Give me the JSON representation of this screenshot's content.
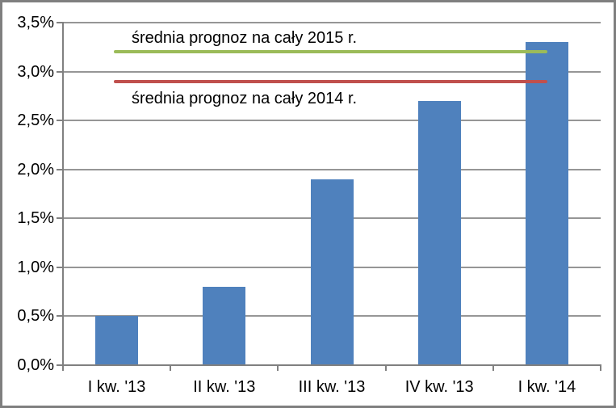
{
  "chart_data": {
    "type": "bar",
    "categories": [
      "I kw. '13",
      "II kw. '13",
      "III kw. '13",
      "IV kw. '13",
      "I kw. '14"
    ],
    "values": [
      0.5,
      0.8,
      1.9,
      2.7,
      3.3
    ],
    "value_unit": "percent",
    "ylim": [
      0,
      3.5
    ],
    "ytick_step": 0.5,
    "ytick_labels": [
      "0,0%",
      "0,5%",
      "1,0%",
      "1,5%",
      "2,0%",
      "2,5%",
      "3,0%",
      "3,5%"
    ],
    "grid": true,
    "legend": "none",
    "bar_color": "#4F81BD",
    "gridline_color": "#969696",
    "axis_color": "#808080",
    "reference_lines": [
      {
        "label": "średnia prognoz na cały 2015 r.",
        "value": 3.2,
        "color": "#9BBB59",
        "label_position": "above"
      },
      {
        "label": "średnia prognoz na cały 2014 r.",
        "value": 2.9,
        "color": "#C0504D",
        "label_position": "below"
      }
    ]
  }
}
